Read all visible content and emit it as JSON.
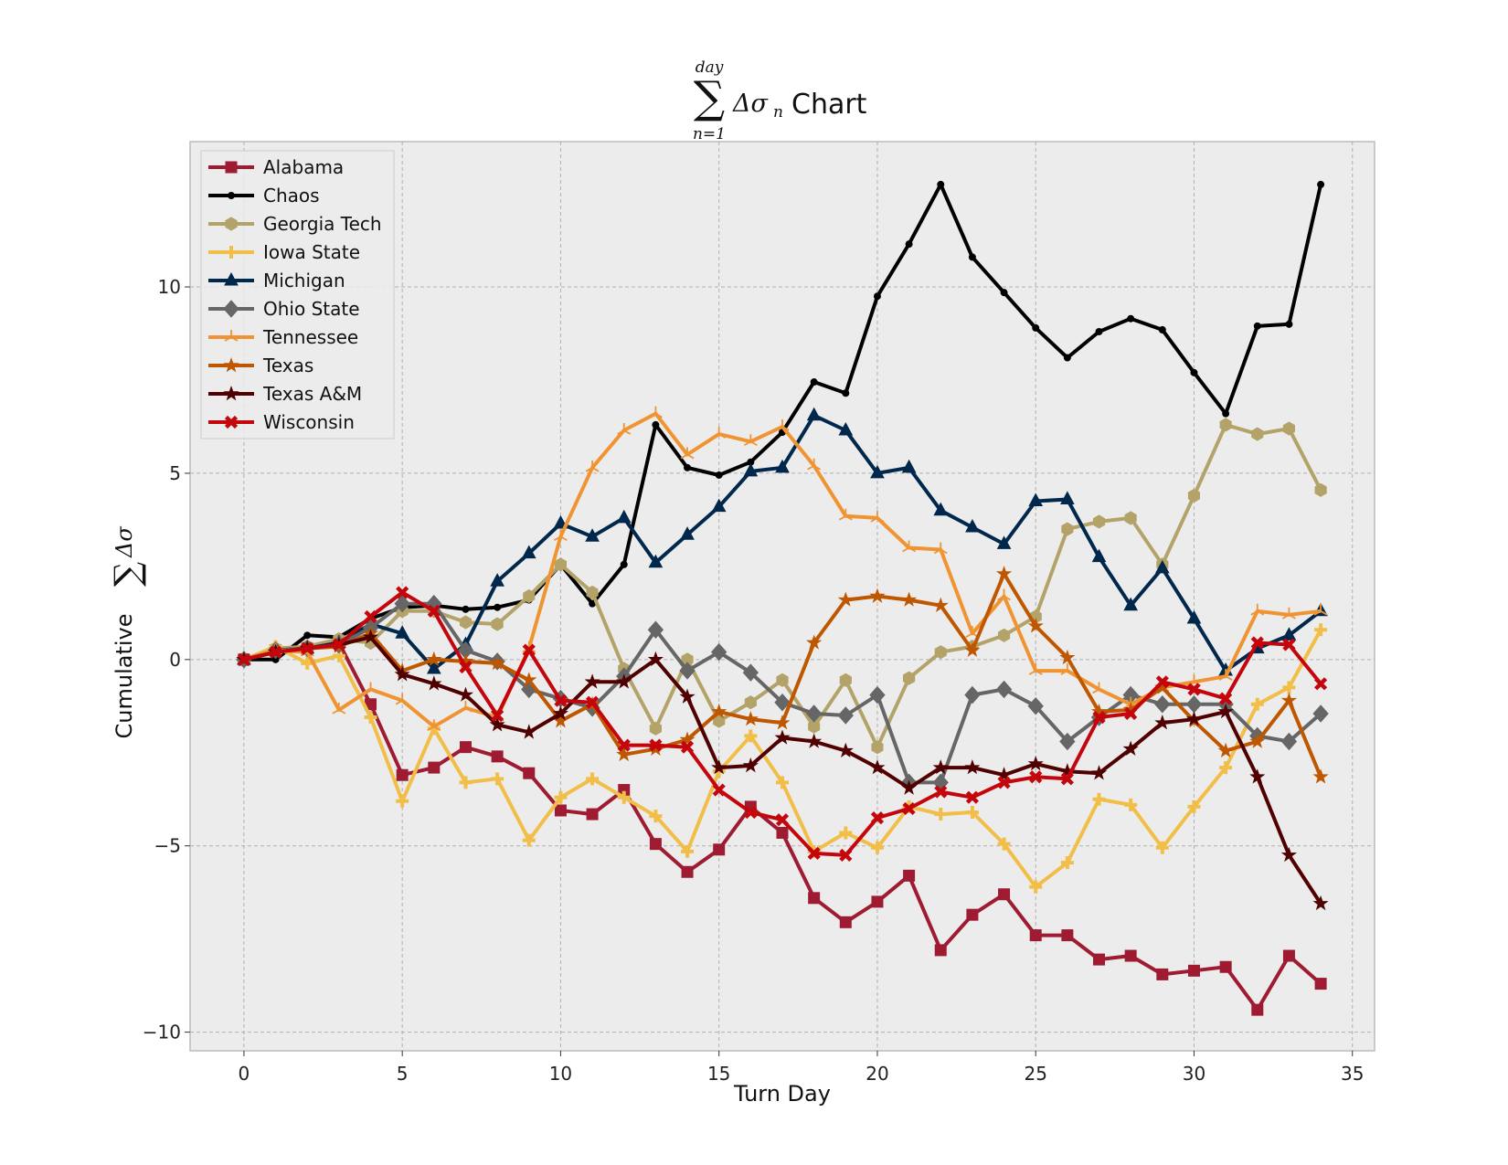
{
  "chart_data": {
    "type": "line",
    "title": {
      "sum_symbol": "∑",
      "upper_limit": "day",
      "lower_limit": "n=1",
      "summand": "Δσ",
      "summand_subscript": "n",
      "suffix": "Chart"
    },
    "xlabel": "Turn Day",
    "ylabel": {
      "prefix": "Cumulative",
      "sum_symbol": "∑",
      "summand": "Δσ"
    },
    "xlim": [
      -1.7,
      35.7
    ],
    "ylim": [
      -10.5,
      13.9
    ],
    "xticks": [
      0,
      5,
      10,
      15,
      20,
      25,
      30,
      35
    ],
    "yticks": [
      -10,
      -5,
      0,
      5,
      10
    ],
    "ytick_labels": [
      "−10",
      "−5",
      "0",
      "5",
      "10"
    ],
    "grid": true,
    "legend_position": "top-left",
    "background": "#ececec",
    "x": [
      0,
      1,
      2,
      3,
      4,
      5,
      6,
      7,
      8,
      9,
      10,
      11,
      12,
      13,
      14,
      15,
      16,
      17,
      18,
      19,
      20,
      21,
      22,
      23,
      24,
      25,
      26,
      27,
      28,
      29,
      30,
      31,
      32,
      33,
      34
    ],
    "series": [
      {
        "name": "Alabama",
        "color": "#9e1b32",
        "marker": "square",
        "values": [
          0,
          0.25,
          0.3,
          0.45,
          -1.2,
          -3.1,
          -2.9,
          -2.35,
          -2.6,
          -3.05,
          -4.05,
          -4.15,
          -3.5,
          -4.95,
          -5.7,
          -5.1,
          -3.95,
          -4.65,
          -6.4,
          -7.05,
          -6.5,
          -5.8,
          -7.8,
          -6.85,
          -6.3,
          -7.4,
          -7.4,
          -8.05,
          -7.95,
          -8.45,
          -8.35,
          -8.25,
          -9.4,
          -7.95,
          -8.7
        ]
      },
      {
        "name": "Chaos",
        "color": "#000000",
        "marker": "point",
        "values": [
          0,
          0,
          0.65,
          0.6,
          1.1,
          1.4,
          1.45,
          1.35,
          1.4,
          1.6,
          2.55,
          1.5,
          2.55,
          6.3,
          5.15,
          4.95,
          5.3,
          6.1,
          7.45,
          7.15,
          9.75,
          11.15,
          12.75,
          10.8,
          9.85,
          8.9,
          8.1,
          8.8,
          9.15,
          8.85,
          7.7,
          6.6,
          8.95,
          9.0,
          12.75
        ]
      },
      {
        "name": "Georgia Tech",
        "color": "#b3a369",
        "marker": "hexagon",
        "values": [
          0,
          0.3,
          0.35,
          0.55,
          0.45,
          1.3,
          1.3,
          1.0,
          0.95,
          1.7,
          2.55,
          1.8,
          -0.25,
          -1.85,
          0.0,
          -1.65,
          -1.15,
          -0.55,
          -1.8,
          -0.55,
          -2.35,
          -0.5,
          0.2,
          0.35,
          0.65,
          1.15,
          3.5,
          3.7,
          3.8,
          2.55,
          4.4,
          6.3,
          6.05,
          6.2,
          4.55
        ]
      },
      {
        "name": "Iowa State",
        "color": "#f1be48",
        "marker": "plus",
        "values": [
          0,
          0.35,
          -0.1,
          0.1,
          -1.55,
          -3.8,
          -1.85,
          -3.3,
          -3.2,
          -4.85,
          -3.7,
          -3.2,
          -3.7,
          -4.2,
          -5.15,
          -3.0,
          -2.05,
          -3.3,
          -5.15,
          -4.65,
          -5.05,
          -3.95,
          -4.15,
          -4.1,
          -4.95,
          -6.1,
          -5.45,
          -3.75,
          -3.9,
          -5.05,
          -3.95,
          -2.9,
          -1.2,
          -0.75,
          0.8
        ]
      },
      {
        "name": "Michigan",
        "color": "#00274c",
        "marker": "triangle",
        "values": [
          0,
          0.25,
          0.3,
          0.45,
          0.95,
          0.7,
          -0.25,
          0.4,
          2.1,
          2.85,
          3.65,
          3.3,
          3.8,
          2.6,
          3.35,
          4.1,
          5.05,
          5.15,
          6.55,
          6.15,
          5.0,
          5.15,
          4.0,
          3.55,
          3.1,
          4.25,
          4.3,
          2.75,
          1.45,
          2.45,
          1.1,
          -0.3,
          0.3,
          0.65,
          1.3
        ]
      },
      {
        "name": "Ohio State",
        "color": "#666666",
        "marker": "diamond",
        "values": [
          0,
          0.25,
          0.3,
          0.4,
          0.85,
          1.5,
          1.5,
          0.25,
          -0.05,
          -0.8,
          -1.05,
          -1.3,
          -0.45,
          0.8,
          -0.3,
          0.2,
          -0.35,
          -1.15,
          -1.45,
          -1.5,
          -0.95,
          -3.3,
          -3.3,
          -0.95,
          -0.8,
          -1.25,
          -2.2,
          -1.55,
          -0.95,
          -1.2,
          -1.2,
          -1.2,
          -2.05,
          -2.2,
          -1.45
        ]
      },
      {
        "name": "Tennessee",
        "color": "#f09433",
        "marker": "tri",
        "values": [
          0,
          0.25,
          0.2,
          -1.35,
          -0.8,
          -1.1,
          -1.8,
          -1.3,
          -1.55,
          0.3,
          3.3,
          5.15,
          6.15,
          6.6,
          5.5,
          6.05,
          5.85,
          6.25,
          5.2,
          3.85,
          3.8,
          3.0,
          2.95,
          0.7,
          1.7,
          -0.3,
          -0.3,
          -0.8,
          -1.2,
          -0.75,
          -0.6,
          -0.45,
          1.3,
          1.2,
          1.3
        ]
      },
      {
        "name": "Texas",
        "color": "#bf5700",
        "marker": "star",
        "values": [
          0,
          0.2,
          0.3,
          0.35,
          0.7,
          -0.3,
          0.0,
          -0.05,
          -0.1,
          -0.55,
          -1.65,
          -1.2,
          -2.55,
          -2.4,
          -2.15,
          -1.4,
          -1.6,
          -1.7,
          0.45,
          1.6,
          1.7,
          1.6,
          1.45,
          0.25,
          2.3,
          0.9,
          0.05,
          -1.4,
          -1.35,
          -0.75,
          -1.65,
          -2.45,
          -2.2,
          -1.1,
          -3.15
        ]
      },
      {
        "name": "Texas A&M",
        "color": "#500000",
        "marker": "star",
        "values": [
          0,
          0.2,
          0.3,
          0.4,
          0.6,
          -0.4,
          -0.65,
          -0.95,
          -1.75,
          -1.95,
          -1.45,
          -0.6,
          -0.6,
          0.0,
          -1.0,
          -2.9,
          -2.85,
          -2.1,
          -2.2,
          -2.45,
          -2.9,
          -3.45,
          -2.9,
          -2.9,
          -3.1,
          -2.8,
          -3.0,
          -3.05,
          -2.4,
          -1.7,
          -1.6,
          -1.4,
          -3.15,
          -5.25,
          -6.55
        ]
      },
      {
        "name": "Wisconsin",
        "color": "#c5050c",
        "marker": "x",
        "values": [
          0,
          0.2,
          0.3,
          0.4,
          1.15,
          1.8,
          1.3,
          -0.2,
          -1.5,
          0.25,
          -1.1,
          -1.15,
          -2.3,
          -2.3,
          -2.35,
          -3.5,
          -4.1,
          -4.3,
          -5.2,
          -5.25,
          -4.25,
          -4.0,
          -3.55,
          -3.7,
          -3.3,
          -3.15,
          -3.2,
          -1.55,
          -1.45,
          -0.6,
          -0.8,
          -1.05,
          0.45,
          0.4,
          -0.65
        ]
      }
    ]
  }
}
